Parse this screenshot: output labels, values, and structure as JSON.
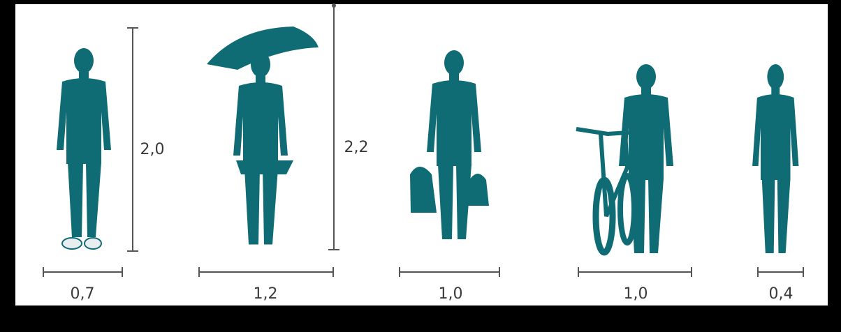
{
  "figures": [
    {
      "width_label": "0,7",
      "height_label": "2,0"
    },
    {
      "width_label": "1,2",
      "height_label": "2,2"
    },
    {
      "width_label": "1,0"
    },
    {
      "width_label": "1,0"
    },
    {
      "width_label": "0,4"
    }
  ]
}
